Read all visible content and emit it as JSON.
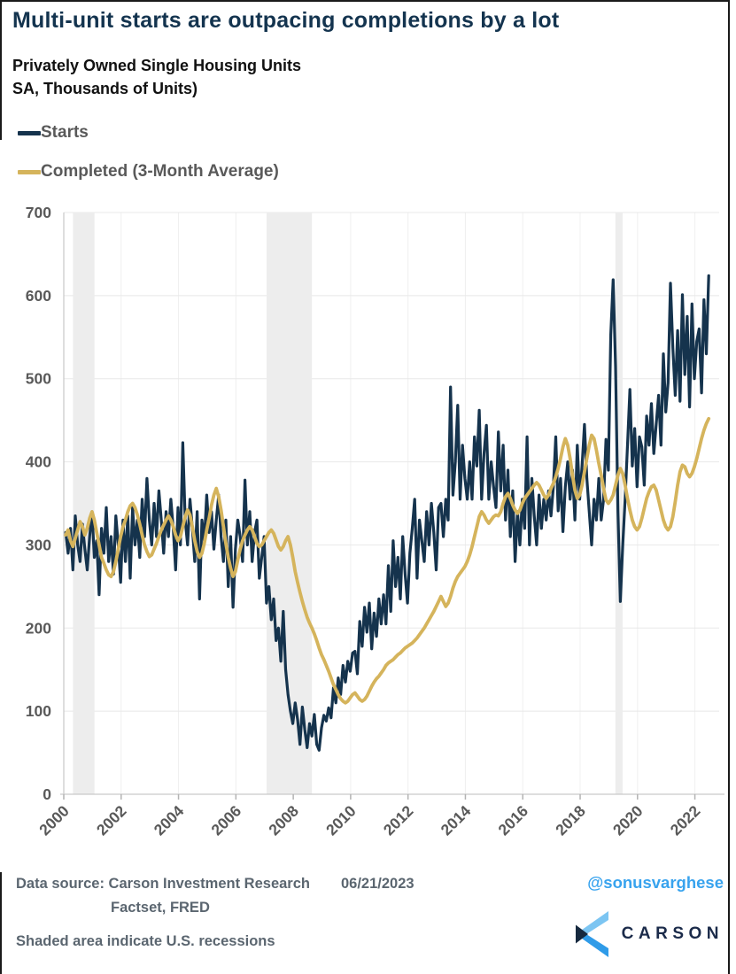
{
  "header": {
    "title": "Multi-unit starts are outpacing completions by a lot",
    "subtitle_line1": "Privately Owned Single Housing Units",
    "subtitle_line2": "SA, Thousands of Units)"
  },
  "legend": {
    "items": [
      {
        "label": "Starts",
        "color": "#15334D"
      },
      {
        "label": "Completed (3-Month Average)",
        "color": "#D5B45C"
      }
    ]
  },
  "footer": {
    "data_source_label": "Data source:",
    "source_line1": "Carson Investment Research",
    "source_line2": "Factset, FRED",
    "date": "06/21/2023",
    "note": "Shaded area indicate U.S. recessions",
    "twitter_handle": "@sonusvarghese",
    "brand": "CARSON",
    "brand_colors": {
      "navy": "#1b2b4a",
      "light_blue": "#7cc5f2",
      "mid_blue": "#2f9be8",
      "dark_mark": "#16293f"
    }
  },
  "chart_data": {
    "type": "line",
    "title": "Multi-unit starts are outpacing completions by a lot",
    "xlabel": "",
    "ylabel": "",
    "ylim": [
      0,
      700
    ],
    "y_ticks": [
      0,
      100,
      200,
      300,
      400,
      500,
      600,
      700
    ],
    "x_ticks": [
      2000,
      2002,
      2004,
      2006,
      2008,
      2010,
      2012,
      2014,
      2016,
      2018,
      2020,
      2022
    ],
    "grid": true,
    "legend_position": "top-left",
    "recessions_note": "Shaded area indicate U.S. recessions",
    "recessions": [
      [
        2001.17,
        2001.92
      ],
      [
        2007.92,
        2009.5
      ],
      [
        2020.08,
        2020.33
      ]
    ],
    "x_start_year": 2000,
    "x_step_months": 1,
    "series": [
      {
        "name": "Starts",
        "color": "#15334D",
        "values": [
          270,
          310,
          285,
          300,
          320,
          265,
          295,
          330,
          280,
          305,
          260,
          315,
          290,
          320,
          270,
          335,
          300,
          280,
          325,
          295,
          270,
          310,
          340,
          285,
          305,
          240,
          320,
          290,
          345,
          280,
          310,
          265,
          335,
          300,
          255,
          330,
          280,
          335,
          260,
          345,
          300,
          330,
          285,
          355,
          310,
          380,
          330,
          300,
          350,
          310,
          365,
          330,
          290,
          340,
          310,
          355,
          320,
          270,
          345,
          300,
          423,
          330,
          300,
          355,
          320,
          280,
          340,
          235,
          330,
          305,
          360,
          315,
          340,
          295,
          330,
          360,
          310,
          280,
          330,
          250,
          310,
          225,
          295,
          330,
          310,
          280,
          378,
          300,
          340,
          280,
          315,
          330,
          260,
          285,
          310,
          230,
          250,
          210,
          235,
          185,
          200,
          160,
          220,
          150,
          120,
          100,
          85,
          110,
          90,
          60,
          105,
          78,
          56,
          85,
          70,
          96,
          60,
          53,
          80,
          95,
          88,
          104,
          92,
          128,
          110,
          140,
          120,
          155,
          135,
          160,
          148,
          170,
          172,
          145,
          208,
          178,
          225,
          195,
          230,
          175,
          218,
          190,
          235,
          205,
          240,
          205,
          275,
          220,
          305,
          250,
          285,
          235,
          310,
          265,
          230,
          290,
          320,
          355,
          260,
          330,
          305,
          280,
          340,
          300,
          350,
          315,
          270,
          345,
          350,
          310,
          355,
          330,
          490,
          360,
          400,
          468,
          355,
          420,
          380,
          355,
          400,
          355,
          430,
          395,
          462,
          355,
          410,
          444,
          355,
          400,
          370,
          345,
          436,
          365,
          420,
          330,
          390,
          310,
          365,
          280,
          340,
          300,
          355,
          320,
          430,
          300,
          380,
          335,
          300,
          360,
          320,
          355,
          330,
          365,
          335,
          370,
          430,
          341,
          380,
          316,
          370,
          400,
          355,
          390,
          330,
          420,
          355,
          395,
          445,
          380,
          340,
          300,
          355,
          330,
          380,
          330,
          355,
          427,
          390,
          553,
          619,
          515,
          340,
          232,
          299,
          355,
          420,
          487,
          395,
          440,
          370,
          430,
          418,
          372,
          455,
          420,
          470,
          410,
          445,
          480,
          420,
          530,
          460,
          495,
          615,
          537,
          480,
          558,
          473,
          601,
          505,
          575,
          466,
          590,
          500,
          545,
          560,
          483,
          595,
          530,
          624
        ]
      },
      {
        "name": "Completed (3-Month Average)",
        "color": "#D5B45C",
        "values": [
          315,
          322,
          330,
          318,
          305,
          296,
          288,
          295,
          308,
          315,
          320,
          312,
          318,
          305,
          298,
          308,
          318,
          328,
          322,
          312,
          320,
          332,
          340,
          330,
          315,
          300,
          285,
          278,
          270,
          264,
          262,
          268,
          280,
          295,
          310,
          322,
          330,
          340,
          347,
          350,
          345,
          336,
          325,
          312,
          300,
          292,
          286,
          288,
          295,
          302,
          310,
          318,
          324,
          330,
          335,
          330,
          322,
          312,
          305,
          310,
          322,
          334,
          342,
          336,
          322,
          305,
          292,
          285,
          290,
          302,
          318,
          332,
          348,
          360,
          368,
          358,
          342,
          322,
          302,
          285,
          272,
          262,
          268,
          282,
          295,
          305,
          312,
          318,
          322,
          318,
          310,
          302,
          298,
          300,
          305,
          310,
          315,
          318,
          314,
          306,
          298,
          294,
          298,
          305,
          310,
          300,
          285,
          268,
          255,
          243,
          232,
          222,
          213,
          206,
          200,
          193,
          185,
          176,
          168,
          162,
          155,
          148,
          140,
          132,
          126,
          120,
          115,
          112,
          110,
          112,
          116,
          120,
          122,
          118,
          114,
          112,
          114,
          118,
          124,
          130,
          135,
          139,
          142,
          146,
          150,
          155,
          158,
          160,
          162,
          165,
          168,
          170,
          173,
          176,
          178,
          180,
          182,
          185,
          188,
          192,
          196,
          200,
          205,
          210,
          215,
          220,
          226,
          232,
          238,
          232,
          226,
          230,
          238,
          248,
          256,
          262,
          266,
          270,
          274,
          280,
          288,
          298,
          310,
          322,
          334,
          340,
          336,
          330,
          326,
          330,
          334,
          336,
          335,
          340,
          350,
          358,
          362,
          356,
          348,
          342,
          338,
          342,
          350,
          356,
          360,
          364,
          368,
          372,
          375,
          372,
          366,
          360,
          356,
          360,
          368,
          374,
          382,
          392,
          404,
          418,
          428,
          420,
          404,
          384,
          366,
          356,
          360,
          372,
          388,
          404,
          420,
          432,
          428,
          414,
          398,
          384,
          368,
          354,
          350,
          354,
          360,
          372,
          384,
          392,
          386,
          372,
          356,
          342,
          330,
          322,
          318,
          322,
          332,
          344,
          356,
          364,
          370,
          372,
          366,
          354,
          342,
          330,
          322,
          318,
          322,
          334,
          352,
          372,
          388,
          396,
          394,
          386,
          382,
          386,
          394,
          404,
          416,
          428,
          438,
          446,
          452
        ]
      }
    ],
    "styles": {
      "band_fill": "#ededed",
      "h_grid": "#e8e8e8",
      "v_grid": "#f0f0f0",
      "axis_line": "#c9c9c9",
      "tick_mark": "#b3b3b3",
      "tick_label": "#595959"
    }
  }
}
